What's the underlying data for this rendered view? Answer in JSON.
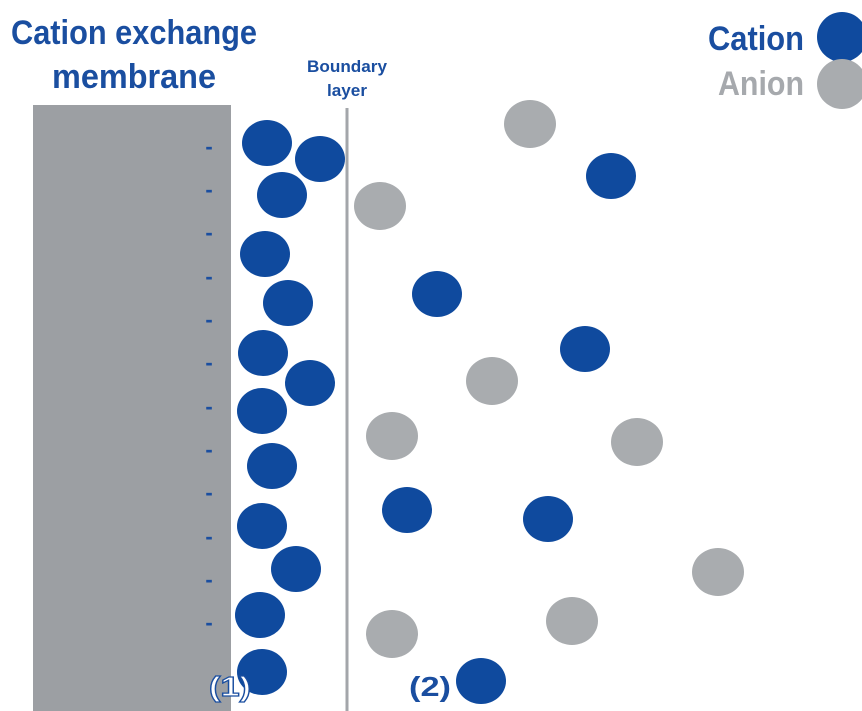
{
  "membrane": {
    "title_line1": "Cation exchange",
    "title_line2": "membrane",
    "charge_symbol": "-",
    "charge_count": 12
  },
  "boundary_layer": {
    "line1": "Boundary",
    "line2": "layer"
  },
  "legend": {
    "cation_label": "Cation",
    "anion_label": "Anion"
  },
  "regions": {
    "region1_label": "(1)",
    "region2_label": "(2)"
  },
  "colors": {
    "cation": "#0f4a9e",
    "anion": "#a9acaf",
    "membrane": "#9c9fa3",
    "title_text": "#1a4ea0",
    "anion_text": "#a6a9ad",
    "boundary_line": "#a3a6aa",
    "charge": "#1a4ea0"
  }
}
